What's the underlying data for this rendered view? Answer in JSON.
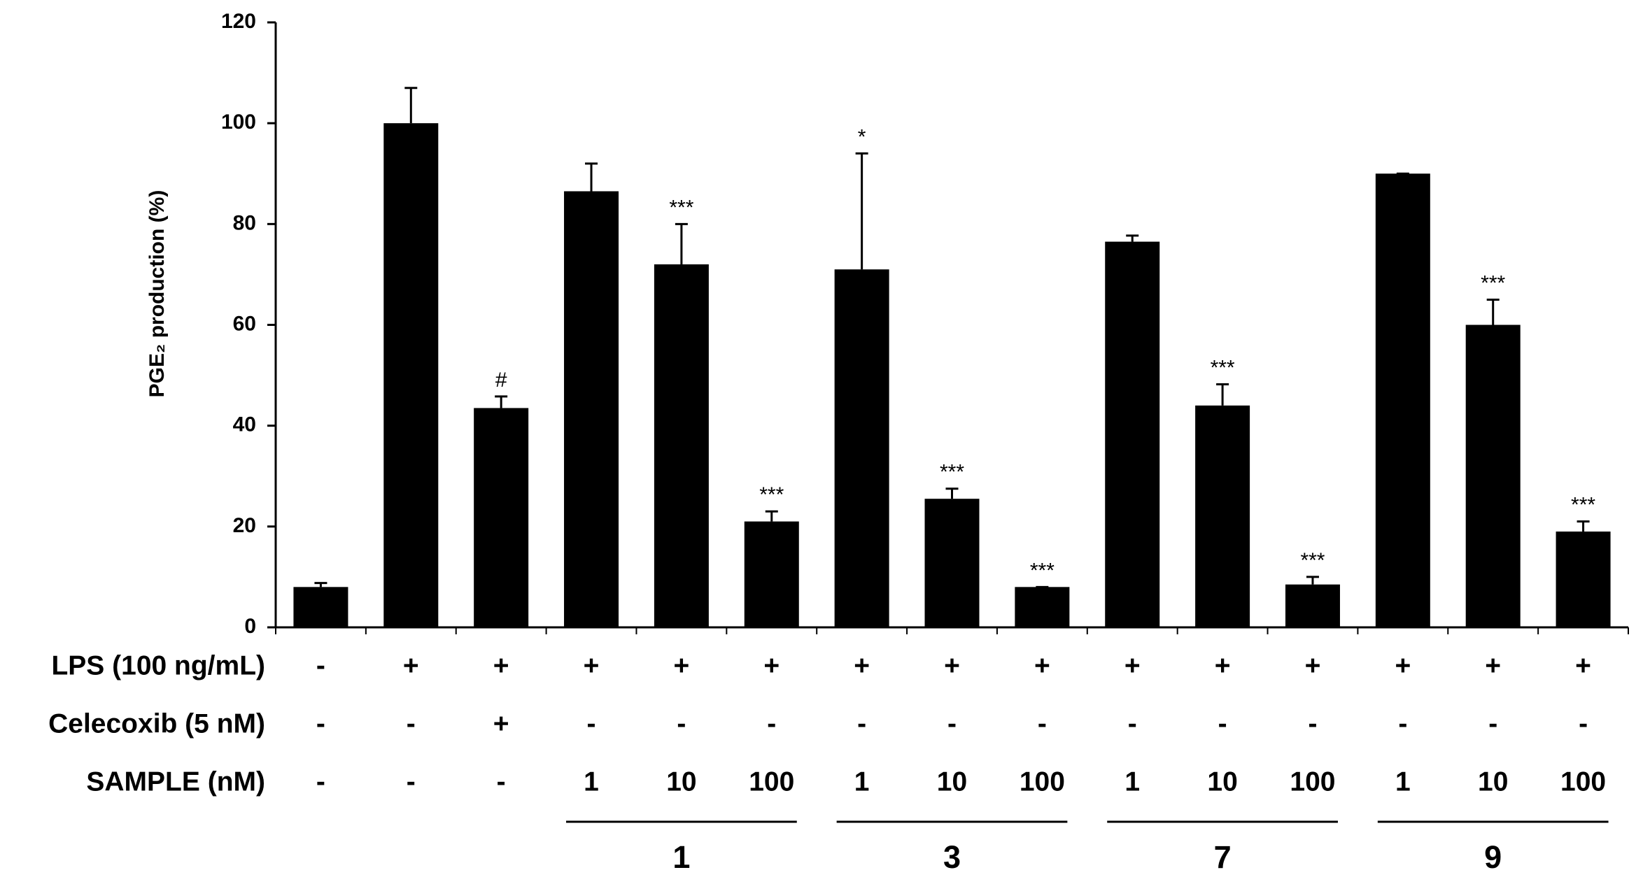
{
  "chart_data": {
    "type": "bar",
    "y_label": "PGE₂ production (%)",
    "values": [
      8,
      100,
      43.5,
      86.5,
      72,
      21,
      71,
      25.5,
      8,
      76.5,
      44,
      8.5,
      90,
      60,
      19
    ],
    "errors": [
      0.8,
      7,
      2.3,
      5.5,
      8,
      2,
      23,
      2,
      0,
      1.2,
      4.2,
      1.5,
      0,
      5,
      2
    ],
    "annotations": [
      null,
      null,
      "#",
      null,
      "***",
      "***",
      "*",
      "***",
      "***",
      null,
      "***",
      "***",
      null,
      "***",
      "***"
    ],
    "color": "#000000",
    "ylim": [
      0,
      120
    ],
    "yticks": [
      0,
      20,
      40,
      60,
      80,
      100,
      120
    ],
    "rows": [
      {
        "label": "LPS (100 ng/mL)",
        "values": [
          "-",
          "+",
          "+",
          "+",
          "+",
          "+",
          "+",
          "+",
          "+",
          "+",
          "+",
          "+",
          "+",
          "+",
          "+"
        ]
      },
      {
        "label": "Celecoxib (5 nM)",
        "values": [
          "-",
          "-",
          "+",
          "-",
          "-",
          "-",
          "-",
          "-",
          "-",
          "-",
          "-",
          "-",
          "-",
          "-",
          "-"
        ]
      },
      {
        "label": "SAMPLE (nM)",
        "values": [
          "-",
          "-",
          "-",
          "1",
          "10",
          "100",
          "1",
          "10",
          "100",
          "1",
          "10",
          "100",
          "1",
          "10",
          "100"
        ]
      }
    ],
    "groups": [
      "1",
      "3",
      "7",
      "9"
    ]
  }
}
